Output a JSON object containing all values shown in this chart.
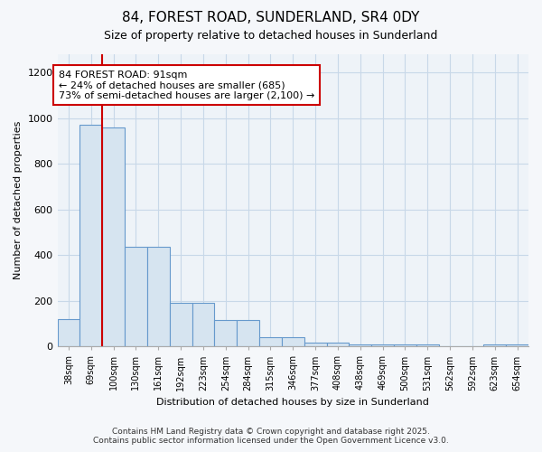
{
  "title1": "84, FOREST ROAD, SUNDERLAND, SR4 0DY",
  "title2": "Size of property relative to detached houses in Sunderland",
  "xlabel": "Distribution of detached houses by size in Sunderland",
  "ylabel": "Number of detached properties",
  "bar_color": "#d6e4f0",
  "bar_edge_color": "#6699cc",
  "background_color": "#eef3f8",
  "grid_color": "#c8d8e8",
  "categories": [
    "38sqm",
    "69sqm",
    "100sqm",
    "130sqm",
    "161sqm",
    "192sqm",
    "223sqm",
    "254sqm",
    "284sqm",
    "315sqm",
    "346sqm",
    "377sqm",
    "408sqm",
    "438sqm",
    "469sqm",
    "500sqm",
    "531sqm",
    "562sqm",
    "592sqm",
    "623sqm",
    "654sqm"
  ],
  "values": [
    120,
    970,
    960,
    435,
    435,
    190,
    190,
    115,
    115,
    42,
    42,
    18,
    18,
    10,
    10,
    7,
    7,
    3,
    3,
    8,
    8
  ],
  "red_line_x": 2.0,
  "annotation_text": "84 FOREST ROAD: 91sqm\n← 24% of detached houses are smaller (685)\n73% of semi-detached houses are larger (2,100) →",
  "ylim": [
    0,
    1280
  ],
  "yticks": [
    0,
    200,
    400,
    600,
    800,
    1000,
    1200
  ],
  "footer": "Contains HM Land Registry data © Crown copyright and database right 2025.\nContains public sector information licensed under the Open Government Licence v3.0."
}
